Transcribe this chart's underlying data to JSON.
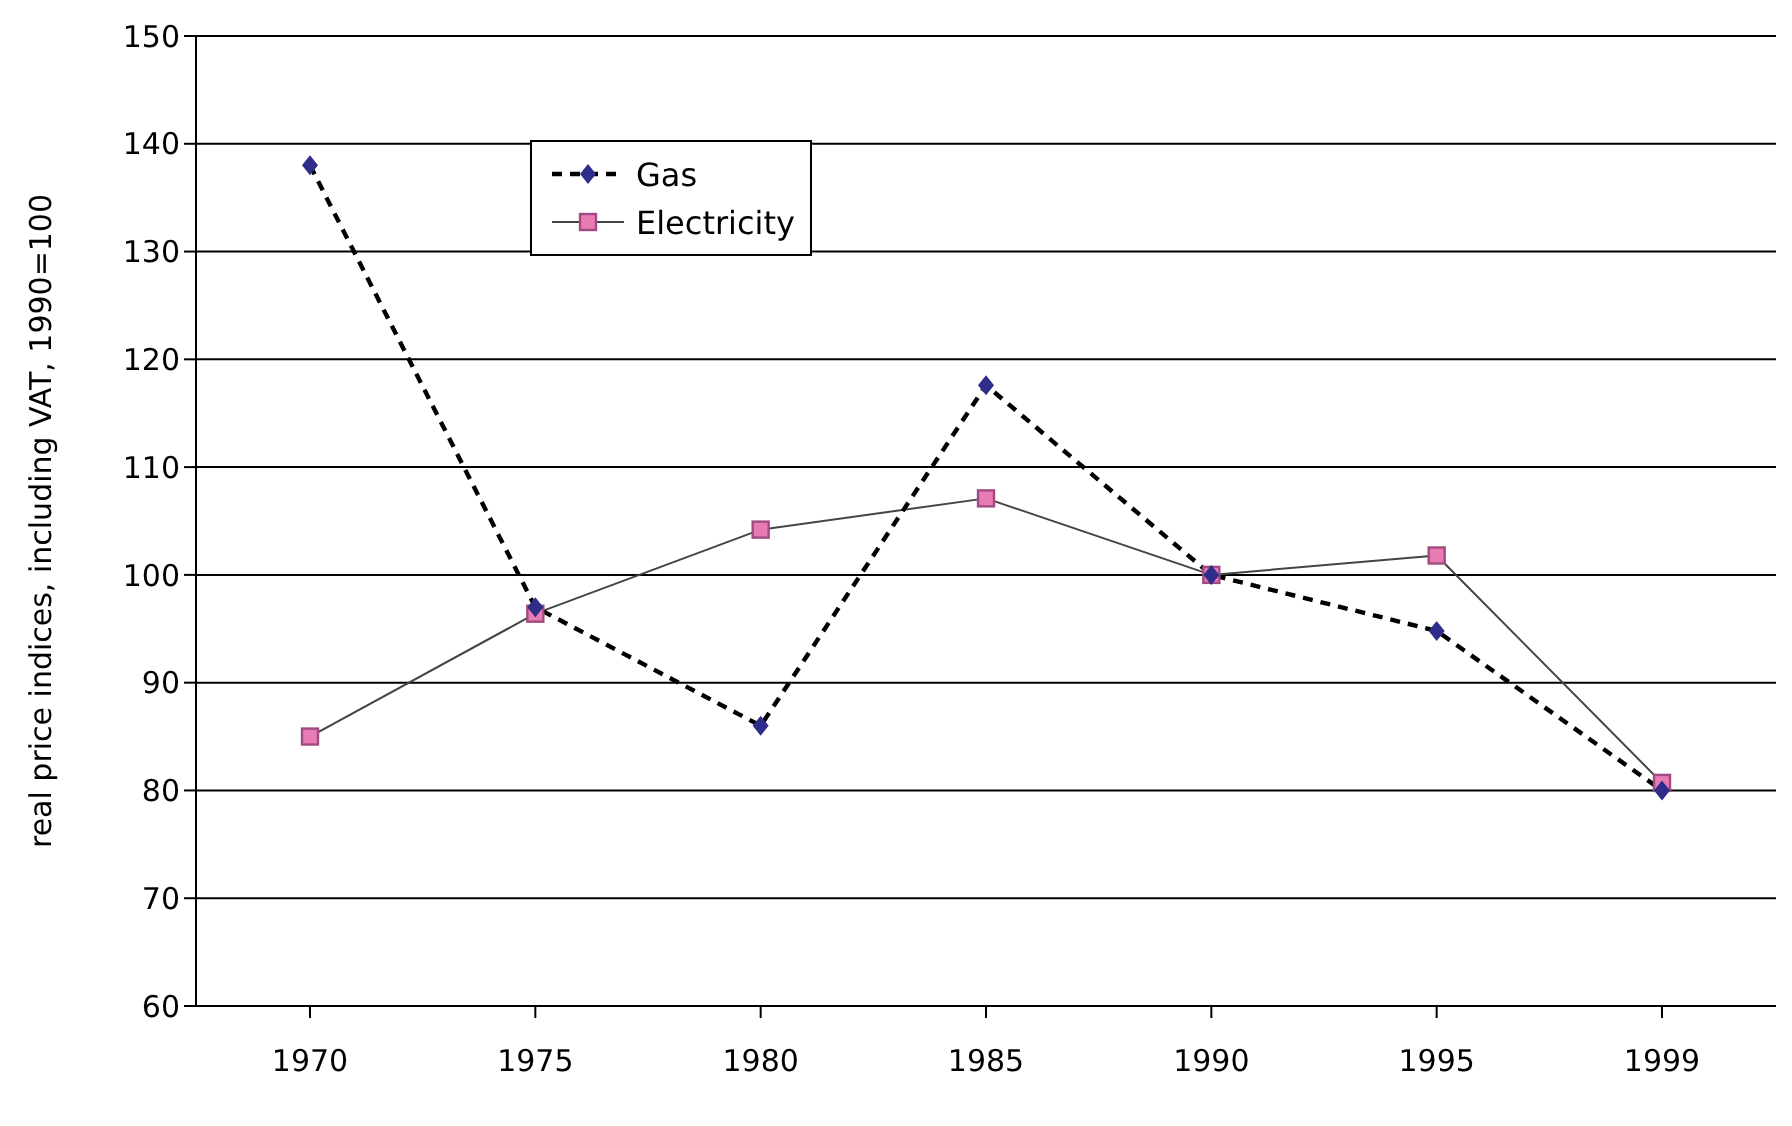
{
  "chart_data": {
    "type": "line",
    "ylabel": "real price indices, including VAT, 1990=100",
    "categories": [
      "1970",
      "1975",
      "1980",
      "1985",
      "1990",
      "1995",
      "1999"
    ],
    "series": [
      {
        "name": "Gas",
        "color": "#2e2e8a",
        "values": [
          138,
          97,
          86,
          117.6,
          100,
          94.8,
          80
        ],
        "marker": "diamond",
        "line_style": "dashed"
      },
      {
        "name": "Electricity",
        "color": "#e87ab4",
        "values": [
          85,
          96.4,
          104.2,
          107.1,
          100,
          101.8,
          80.7
        ],
        "marker": "square",
        "line_style": "solid"
      }
    ],
    "ylim": [
      60,
      150
    ],
    "yticks": [
      60,
      70,
      80,
      90,
      100,
      110,
      120,
      130,
      140,
      150
    ],
    "grid": "y",
    "legend": "top left"
  }
}
